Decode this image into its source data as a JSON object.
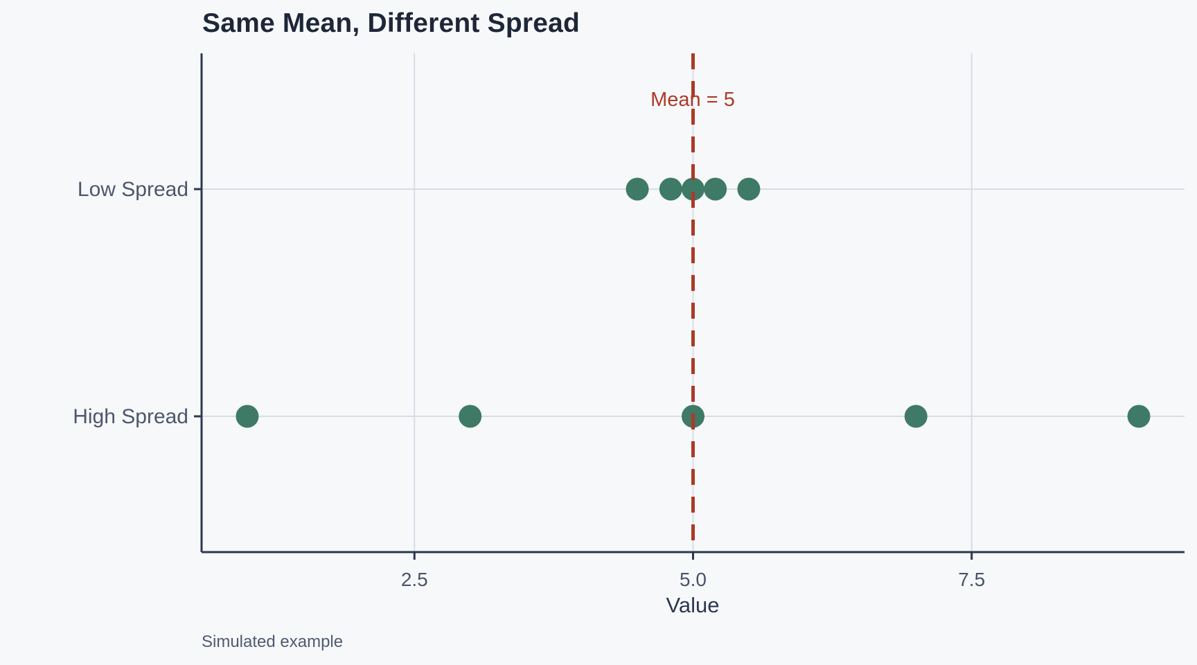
{
  "page": {
    "background": "#f7f8fa"
  },
  "chart_data": {
    "type": "scatter",
    "title": "Same Mean, Different Spread",
    "xlabel": "Value",
    "ylabel": "",
    "caption": "Simulated example",
    "categories": [
      "Low Spread",
      "High Spread"
    ],
    "series": [
      {
        "name": "Low Spread",
        "values": [
          4.5,
          4.8,
          5.0,
          5.2,
          5.5
        ]
      },
      {
        "name": "High Spread",
        "values": [
          1,
          3,
          5,
          7,
          9
        ]
      }
    ],
    "x_ticks": [
      2.5,
      5.0,
      7.5
    ],
    "x_tick_labels": [
      "2.5",
      "5.0",
      "7.5"
    ],
    "xlim": [
      0.59,
      9.41
    ],
    "grid": true,
    "legend": "none",
    "mean_line": {
      "x": 5,
      "label": "Mean = 5",
      "style": "dashed"
    },
    "colors": {
      "background": "#f7f8fa",
      "point": "#3e7a66",
      "mean_line": "#ac3a28",
      "axis": "#2c3850",
      "gridline": "#d8dce4",
      "title_text": "#1d2738",
      "tick_text": "#48546a",
      "category_text": "#4b576b",
      "axis_label_text": "#2c3850",
      "caption_text": "#4e5b70"
    }
  }
}
